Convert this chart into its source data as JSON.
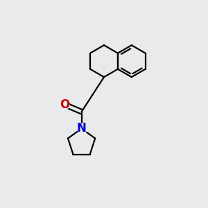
{
  "bg_color": "#e8eaeb",
  "bond_color": "#000000",
  "O_color": "#cc0000",
  "N_color": "#0000cc",
  "line_width": 1.6,
  "font_size_atom": 12
}
